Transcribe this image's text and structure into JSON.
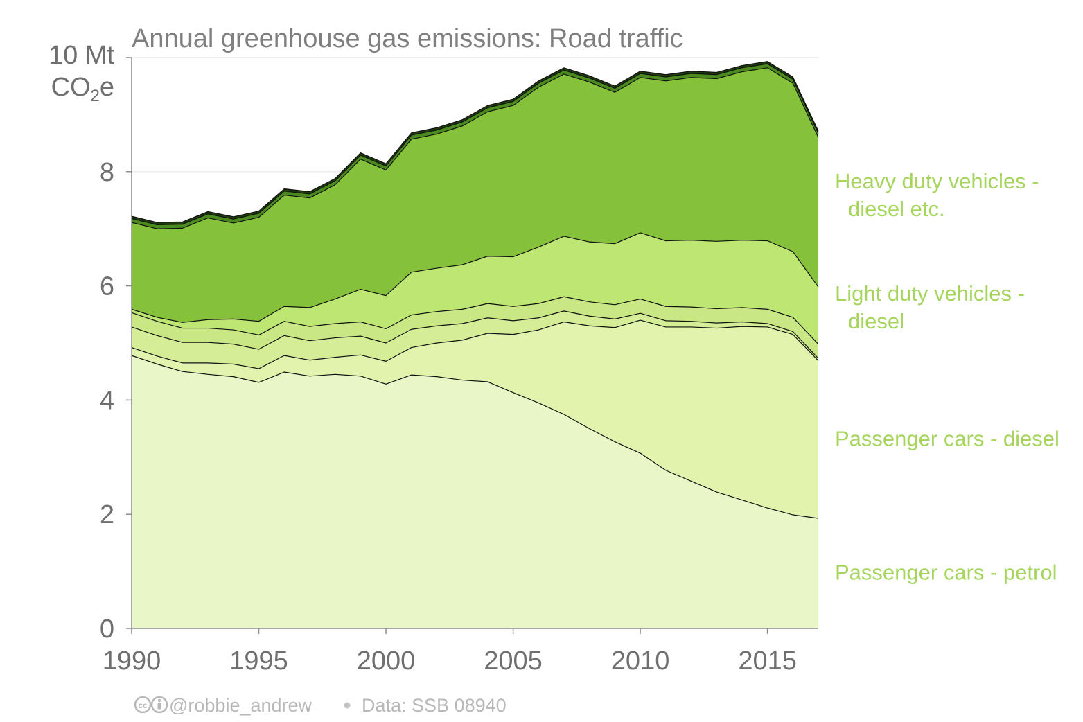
{
  "chart_data": {
    "type": "area",
    "stacked": true,
    "title": "Annual greenhouse gas emissions: Road traffic",
    "ylabel_top": "10 Mt",
    "ylabel_unit": "CO",
    "ylabel_sub": "2",
    "ylabel_suffix": "e",
    "ylim": [
      0,
      10
    ],
    "xlim": [
      1990,
      2017
    ],
    "x_ticks": [
      1990,
      1995,
      2000,
      2005,
      2010,
      2015
    ],
    "y_ticks": [
      0,
      2,
      4,
      6,
      8
    ],
    "grid": "horizontal",
    "x": [
      1990,
      1991,
      1992,
      1993,
      1994,
      1995,
      1996,
      1997,
      1998,
      1999,
      2000,
      2001,
      2002,
      2003,
      2004,
      2005,
      2006,
      2007,
      2008,
      2009,
      2010,
      2011,
      2012,
      2013,
      2014,
      2015,
      2016,
      2017
    ],
    "series": [
      {
        "key": "petrol",
        "name": "Passenger cars - petrol",
        "color": "#e9f6c8",
        "values": [
          4.78,
          4.63,
          4.5,
          4.45,
          4.41,
          4.31,
          4.49,
          4.42,
          4.45,
          4.42,
          4.28,
          4.44,
          4.41,
          4.35,
          4.32,
          4.13,
          3.95,
          3.75,
          3.5,
          3.27,
          3.07,
          2.77,
          2.58,
          2.39,
          2.25,
          2.11,
          1.99,
          1.93
        ]
      },
      {
        "key": "other1",
        "name": "",
        "color": "#e2f3ae",
        "values": [
          0.14,
          0.14,
          0.15,
          0.2,
          0.22,
          0.24,
          0.29,
          0.28,
          0.3,
          0.37,
          0.4,
          0.48,
          0.59,
          0.7,
          0.85,
          1.02,
          1.28,
          1.62,
          1.8,
          2.0,
          2.33,
          2.51,
          2.7,
          2.87,
          3.04,
          3.17,
          3.16,
          2.76
        ]
      },
      {
        "key": "diesel_cars",
        "name": "Passenger cars - diesel",
        "color": "#d4ed96",
        "values": [
          0.36,
          0.36,
          0.36,
          0.36,
          0.35,
          0.34,
          0.35,
          0.34,
          0.34,
          0.33,
          0.32,
          0.32,
          0.3,
          0.29,
          0.27,
          0.24,
          0.21,
          0.19,
          0.17,
          0.15,
          0.12,
          0.11,
          0.1,
          0.09,
          0.08,
          0.06,
          0.05,
          0.04
        ]
      },
      {
        "key": "other2",
        "name": "",
        "color": "#c9e785",
        "values": [
          0.25,
          0.25,
          0.25,
          0.25,
          0.25,
          0.25,
          0.25,
          0.25,
          0.25,
          0.25,
          0.25,
          0.25,
          0.25,
          0.25,
          0.25,
          0.25,
          0.25,
          0.25,
          0.25,
          0.25,
          0.25,
          0.25,
          0.25,
          0.25,
          0.25,
          0.25,
          0.25,
          0.25
        ]
      },
      {
        "key": "ldv_diesel",
        "name": "Light duty vehicles - diesel",
        "color": "#bee673",
        "values": [
          0.06,
          0.07,
          0.1,
          0.15,
          0.19,
          0.24,
          0.26,
          0.33,
          0.43,
          0.57,
          0.58,
          0.75,
          0.76,
          0.78,
          0.83,
          0.87,
          0.99,
          1.06,
          1.05,
          1.07,
          1.16,
          1.15,
          1.17,
          1.18,
          1.18,
          1.2,
          1.15,
          1.0
        ]
      },
      {
        "key": "hdv_diesel",
        "name": "Heavy duty vehicles - diesel etc.",
        "color": "#85c13a",
        "values": [
          1.52,
          1.55,
          1.65,
          1.78,
          1.68,
          1.82,
          1.95,
          1.92,
          2.0,
          2.28,
          2.2,
          2.33,
          2.35,
          2.43,
          2.53,
          2.65,
          2.8,
          2.84,
          2.8,
          2.65,
          2.72,
          2.8,
          2.85,
          2.85,
          2.95,
          3.03,
          2.95,
          2.62
        ]
      },
      {
        "key": "other3",
        "name": "",
        "color": "#4a8a1e",
        "values": [
          0.07,
          0.07,
          0.07,
          0.07,
          0.07,
          0.07,
          0.07,
          0.07,
          0.07,
          0.07,
          0.07,
          0.07,
          0.07,
          0.07,
          0.07,
          0.07,
          0.07,
          0.07,
          0.07,
          0.07,
          0.07,
          0.07,
          0.07,
          0.07,
          0.07,
          0.07,
          0.07,
          0.07
        ]
      },
      {
        "key": "other4",
        "name": "",
        "color": "#1f3a0e",
        "values": [
          0.04,
          0.04,
          0.04,
          0.04,
          0.04,
          0.04,
          0.04,
          0.04,
          0.04,
          0.04,
          0.04,
          0.04,
          0.04,
          0.04,
          0.04,
          0.04,
          0.04,
          0.04,
          0.04,
          0.04,
          0.04,
          0.04,
          0.04,
          0.04,
          0.04,
          0.04,
          0.04,
          0.04
        ]
      }
    ],
    "labels": [
      {
        "key": "hdv",
        "lines": [
          "Heavy duty vehicles -",
          "diesel etc."
        ],
        "y": 7.6
      },
      {
        "key": "ldv",
        "lines": [
          "Light duty vehicles -",
          "diesel"
        ],
        "y": 5.63
      },
      {
        "key": "pcd",
        "lines": [
          "Passenger cars - diesel"
        ],
        "y": 3.33
      },
      {
        "key": "pcp",
        "lines": [
          "Passenger cars - petrol"
        ],
        "y": 0.99
      }
    ],
    "label_color": "#a5d55d",
    "credit": "@robbie_andrew",
    "source": "Data: SSB 08940"
  }
}
